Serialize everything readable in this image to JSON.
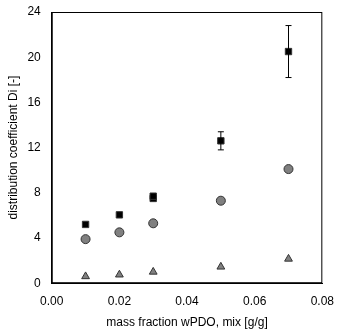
{
  "chart_data": {
    "type": "scatter",
    "x_label": "mass fraction wPDO, mix [g/g]",
    "y_label": "distribution coefficient Di [-]",
    "xlim": [
      0,
      0.08
    ],
    "xticks": [
      {
        "value": 0,
        "label": "0.00"
      },
      {
        "value": 0.02,
        "label": "0.02"
      },
      {
        "value": 0.04,
        "label": "0.04"
      },
      {
        "value": 0.06,
        "label": "0.06"
      },
      {
        "value": 0.08,
        "label": "0.08"
      }
    ],
    "ylim": [
      0,
      24
    ],
    "yticks": [
      0,
      4,
      8,
      12,
      16,
      20,
      24
    ],
    "grid": false,
    "series": [
      {
        "color": "#000000",
        "marker": "square",
        "x": [
          0.01,
          0.02,
          0.03,
          0.03,
          0.05,
          0.07
        ],
        "values": [
          5.2,
          6.05,
          7.5,
          7.7,
          12.6,
          20.5
        ],
        "errors": [
          null,
          null,
          null,
          null,
          0.8,
          2.3
        ]
      },
      {
        "color": "#808080",
        "marker": "circle",
        "x": [
          0.01,
          0.02,
          0.03,
          0.05,
          0.07
        ],
        "values": [
          3.9,
          4.5,
          5.3,
          7.3,
          10.1
        ]
      },
      {
        "color": "#808080",
        "marker": "triangle",
        "x": [
          0.01,
          0.02,
          0.03,
          0.05,
          0.07
        ],
        "values": [
          0.6,
          0.75,
          1.0,
          1.45,
          2.15
        ]
      }
    ]
  }
}
